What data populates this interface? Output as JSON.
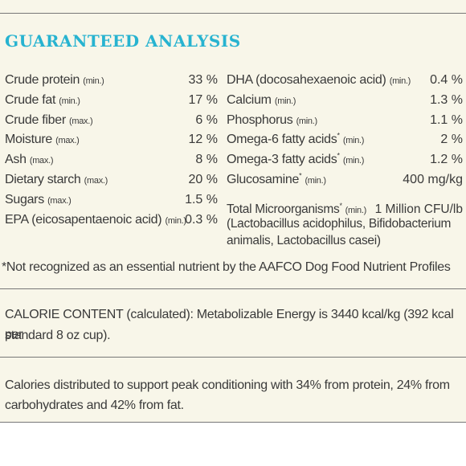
{
  "title": "GUARANTEED ANALYSIS",
  "left_rows": [
    {
      "label": "Crude protein",
      "qualifier": "(min.)",
      "value": "33 %"
    },
    {
      "label": "Crude fat",
      "qualifier": "(min.)",
      "value": "17 %"
    },
    {
      "label": "Crude fiber",
      "qualifier": "(max.)",
      "value": "6 %"
    },
    {
      "label": "Moisture",
      "qualifier": "(max.)",
      "value": "12 %"
    },
    {
      "label": "Ash",
      "qualifier": "(max.)",
      "value": "8 %"
    },
    {
      "label": "Dietary starch",
      "qualifier": "(max.)",
      "value": "20 %"
    },
    {
      "label": "Sugars",
      "qualifier": "(max.)",
      "value": "1.5 %"
    },
    {
      "label": "EPA (eicosapentaenoic acid)",
      "qualifier": "(min.)",
      "value": "0.3 %"
    }
  ],
  "right_rows": [
    {
      "label": "DHA (docosahexaenoic acid)",
      "qualifier": "(min.)",
      "value": "0.4 %"
    },
    {
      "label": "Calcium",
      "qualifier": "(min.)",
      "value": "1.3 %"
    },
    {
      "label": "Phosphorus",
      "qualifier": "(min.)",
      "value": "1.1 %"
    },
    {
      "label": "Omega-6 fatty acids",
      "asterisk": "*",
      "qualifier": "(min.)",
      "value": "2 %"
    },
    {
      "label": "Omega-3 fatty acids",
      "asterisk": "*",
      "qualifier": "(min.)",
      "value": "1.2 %"
    },
    {
      "label": "Glucosamine",
      "asterisk": "*",
      "qualifier": "(min.)",
      "value": "400 mg/kg"
    }
  ],
  "microorganisms": {
    "label": "Total Microorganisms",
    "asterisk": "*",
    "qualifier": "(min.)",
    "value": "1 Million CFU/lb",
    "detail_line1": "(Lactobacillus acidophilus, Bifidobacterium",
    "detail_line2": "animalis, Lactobacillus casei)"
  },
  "footnote": "*Not recognized as an essential nutrient by the AAFCO Dog Food Nutrient Profiles",
  "calorie_line1": "CALORIE CONTENT (calculated): Metabolizable Energy is 3440 kcal/kg (392 kcal per",
  "calorie_line2": "standard 8 oz cup).",
  "distribution_line1": "Calories distributed to support peak conditioning with 34% from protein, 24% from",
  "distribution_line2": "carbohydrates and 42% from fat."
}
